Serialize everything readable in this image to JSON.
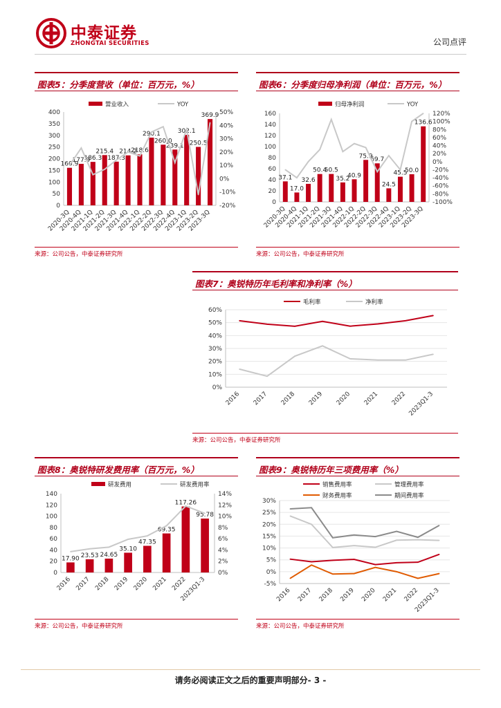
{
  "header": {
    "logo_cn": "中泰证券",
    "logo_en": "ZHONGTAI SECURITIES",
    "doc_type": "公司点评",
    "brand_color": "#c00018"
  },
  "footer": {
    "text": "请务必阅读正文之后的重要声明部分- 3 -"
  },
  "panels": [
    {
      "title": "图表5：分季度营收（单位：百万元，%）",
      "source": "来源：公司公告，中泰证券研究所"
    },
    {
      "title": "图表6：分季度归母净利润（单位：百万元，%）",
      "source": "来源：公司公告，中泰证券研究所"
    },
    {
      "title": "图表7：奥锐特历年毛利率和净利率（%）",
      "source": "来源：公司公告，中泰证券研究所"
    },
    {
      "title": "图表8：奥锐特研发费用率（百万元，%）",
      "source": "来源：公司公告，中泰证券研究所"
    },
    {
      "title": "图表9：奥锐特历年三项费用率（%）",
      "source": "来源：公司公告，中泰证券研究所"
    }
  ],
  "chart_data": [
    {
      "type": "bar",
      "categories": [
        "2020-3Q",
        "2020-4Q",
        "2021-1Q",
        "2021-2Q",
        "2021-3Q",
        "2021-4Q",
        "2022-1Q",
        "2022-2Q",
        "2022-3Q",
        "2022-4Q",
        "2023-1Q",
        "2023-2Q",
        "2023-3Q"
      ],
      "series": [
        {
          "name": "营业收入",
          "kind": "bar",
          "axis": "left",
          "color": "#c00018",
          "values": [
            160.9,
            177.9,
            186.3,
            215.4,
            187.3,
            214.2,
            218.6,
            290.1,
            260.0,
            239.1,
            302.1,
            250.5,
            369.9
          ],
          "labels": [
            "160.9",
            "177.9",
            "186.3",
            "215.4",
            "187.3",
            "214.2",
            "218.6",
            "290.1",
            "260.0",
            "239.1",
            "302.1",
            "250.5",
            "369.9"
          ]
        },
        {
          "name": "YOY",
          "kind": "line",
          "axis": "right",
          "color": "#c8c8c8",
          "values": [
            10,
            23,
            3,
            7,
            14,
            20,
            17,
            35,
            39,
            12,
            37,
            -12,
            42
          ]
        }
      ],
      "left_ticks": [
        "0",
        "50",
        "100",
        "150",
        "200",
        "250",
        "300",
        "350",
        "400"
      ],
      "ylim": [
        0,
        400
      ],
      "right_ticks": [
        "-20%",
        "-10%",
        "0%",
        "10%",
        "20%",
        "30%",
        "40%",
        "50%"
      ],
      "y2lim": [
        -20,
        50
      ]
    },
    {
      "type": "bar",
      "categories": [
        "2020-3Q",
        "2020-4Q",
        "2021-1Q",
        "2021-2Q",
        "2021-3Q",
        "2021-4Q",
        "2022-1Q",
        "2022-2Q",
        "2022-3Q",
        "2022-4Q",
        "2023-1Q",
        "2023-2Q",
        "2023-3Q"
      ],
      "series": [
        {
          "name": "归母净利润",
          "kind": "bar",
          "axis": "left",
          "color": "#c00018",
          "values": [
            37.1,
            17.0,
            32.6,
            50.4,
            50.5,
            35.2,
            40.9,
            75.9,
            69.7,
            24.5,
            45.5,
            50.0,
            136.6
          ],
          "labels": [
            "37.1",
            "17.0",
            "32.6",
            "50.4",
            "50.5",
            "35.2",
            "40.9",
            "75.9",
            "69.7",
            "24.5",
            "45.5",
            "50.0",
            "136.6"
          ]
        },
        {
          "name": "YOY",
          "kind": "line",
          "axis": "right",
          "color": "#c8c8c8",
          "values": [
            -20,
            -40,
            0,
            30,
            105,
            25,
            45,
            35,
            -25,
            15,
            -20,
            100,
            120
          ]
        }
      ],
      "left_ticks": [
        "0",
        "20",
        "40",
        "60",
        "80",
        "100",
        "120",
        "140",
        "160"
      ],
      "ylim": [
        0,
        160
      ],
      "right_ticks": [
        "-100%",
        "-80%",
        "-60%",
        "-40%",
        "-20%",
        "0%",
        "20%",
        "40%",
        "60%",
        "80%",
        "100%",
        "120%"
      ],
      "y2lim": [
        -100,
        120
      ]
    },
    {
      "type": "line",
      "categories": [
        "2016",
        "2017",
        "2018",
        "2019",
        "2020",
        "2021",
        "2022",
        "2023Q1-3"
      ],
      "series": [
        {
          "name": "毛利率",
          "color": "#c00018",
          "values": [
            51.5,
            48.8,
            47.2,
            51.0,
            47.3,
            49.0,
            51.5,
            55.5
          ]
        },
        {
          "name": "净利率",
          "color": "#c8c8c8",
          "values": [
            14.0,
            8.5,
            24.0,
            32.0,
            22.0,
            21.0,
            21.0,
            25.5
          ]
        }
      ],
      "left_ticks": [
        "0%",
        "10%",
        "20%",
        "30%",
        "40%",
        "50%",
        "60%"
      ],
      "ylim": [
        0,
        60
      ]
    },
    {
      "type": "bar",
      "categories": [
        "2016",
        "2017",
        "2018",
        "2019",
        "2020",
        "2021",
        "2022",
        "2023Q1-3"
      ],
      "series": [
        {
          "name": "研发费用",
          "kind": "bar",
          "axis": "left",
          "color": "#c00018",
          "values": [
            17.9,
            23.53,
            24.65,
            35.1,
            47.35,
            69.35,
            117.26,
            95.78
          ],
          "labels": [
            "17.90",
            "23.53",
            "24.65",
            "35.10",
            "47.35",
            "69.35",
            "117.26",
            "95.78"
          ]
        },
        {
          "name": "研发费用率",
          "kind": "line",
          "axis": "right",
          "color": "#c8c8c8",
          "values": [
            3.7,
            4.2,
            4.5,
            5.9,
            6.5,
            8.3,
            11.8,
            10.5
          ]
        }
      ],
      "left_ticks": [
        "0",
        "20",
        "40",
        "60",
        "80",
        "100",
        "120",
        "140"
      ],
      "ylim": [
        0,
        140
      ],
      "right_ticks": [
        "0%",
        "2%",
        "4%",
        "6%",
        "8%",
        "10%",
        "12%",
        "14%"
      ],
      "y2lim": [
        0,
        14
      ]
    },
    {
      "type": "line",
      "categories": [
        "2016",
        "2017",
        "2018",
        "2019",
        "2020",
        "2021",
        "2022",
        "2023Q1-3"
      ],
      "series": [
        {
          "name": "销售费用率",
          "color": "#c00018",
          "values": [
            5.3,
            4.2,
            4.8,
            5.2,
            3.0,
            3.8,
            4.0,
            7.3
          ]
        },
        {
          "name": "管理费用率",
          "color": "#c8c8c8",
          "values": [
            23.5,
            20.0,
            10.2,
            11.0,
            10.3,
            13.3,
            13.5,
            13.2
          ]
        },
        {
          "name": "财务费用率",
          "color": "#e05a00",
          "values": [
            -2.8,
            2.8,
            -1.0,
            -0.8,
            1.8,
            0.0,
            -2.8,
            -0.8
          ]
        },
        {
          "name": "期间费用率",
          "color": "#8a8a8a",
          "values": [
            26.5,
            27.0,
            14.3,
            15.5,
            14.8,
            17.0,
            14.5,
            19.5
          ]
        }
      ],
      "left_ticks": [
        "-5%",
        "0%",
        "5%",
        "10%",
        "15%",
        "20%",
        "25%",
        "30%"
      ],
      "ylim": [
        -5,
        30
      ]
    }
  ]
}
